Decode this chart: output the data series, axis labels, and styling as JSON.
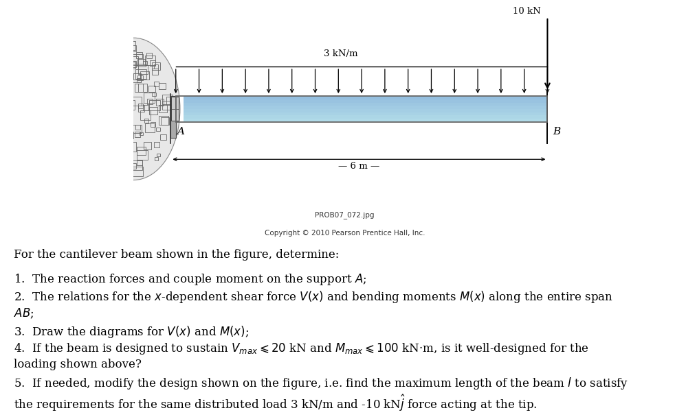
{
  "bg_color": "#ffffff",
  "beam_color_top": "#b8dce8",
  "beam_color_mid": "#87ceeb",
  "beam_color_bot": "#6ab4d4",
  "beam_outline": "#666666",
  "wall_fill": "#d8d8d8",
  "wall_edge": "#555555",
  "text_color": "#000000",
  "title_file": "PROB07_072.jpg",
  "title_copy": "Copyright © 2010 Pearson Prentice Hall, Inc.",
  "load_label": "3 kN/m",
  "force_label": "10 kN",
  "dim_label": "6 m",
  "label_A": "A",
  "label_B": "B",
  "fig_width": 10.24,
  "fig_height": 6.0,
  "body_lines": [
    {
      "text": "For the cantilever beam shown in the figure, determine:",
      "indent": 0,
      "bold": false,
      "size": 12
    },
    {
      "text": "",
      "indent": 0,
      "bold": false,
      "size": 6
    },
    {
      "text": "1.  The reaction forces and couple moment on the support $A$;",
      "indent": 0,
      "bold": false,
      "size": 12
    },
    {
      "text": "2.  The relations for the $x$-dependent shear force $V(x)$ and bending moments $M(x)$ along the entire span",
      "indent": 0,
      "bold": false,
      "size": 12
    },
    {
      "text": "$AB$;",
      "indent": 0,
      "bold": false,
      "size": 12
    },
    {
      "text": "3.  Draw the diagrams for $V(x)$ and $M(x)$;",
      "indent": 0,
      "bold": false,
      "size": 12
    },
    {
      "text": "4.  If the beam is designed to sustain $V_{max} \\leqslant 20$ kN and $M_{max} \\leqslant 100$ kN·m, is it well-designed for the",
      "indent": 0,
      "bold": false,
      "size": 12
    },
    {
      "text": "loading shown above?",
      "indent": 0,
      "bold": false,
      "size": 12
    },
    {
      "text": "5.  If needed, modify the design shown on the figure, i.e. find the maximum length of the beam $l$ to satisfy",
      "indent": 0,
      "bold": false,
      "size": 12
    },
    {
      "text": "the requirements for the same distributed load 3 kN/m and -10 kN$\\hat{j}$ force acting at the tip.",
      "indent": 0,
      "bold": false,
      "size": 12
    }
  ]
}
